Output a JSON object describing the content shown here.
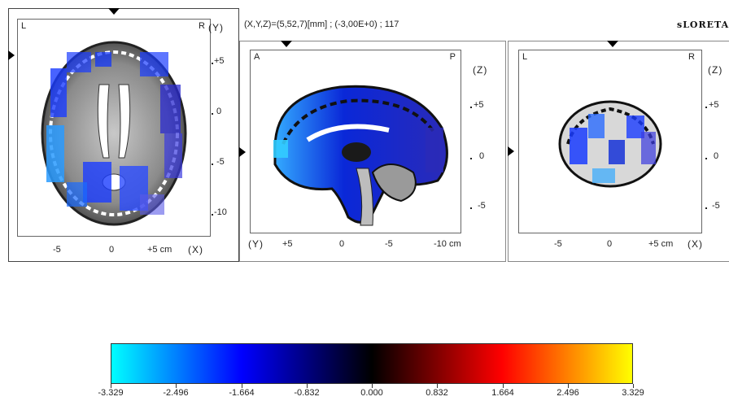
{
  "header": {
    "coord_readout": "(X,Y,Z)=(5,52,7)[mm] ; (-3,00E+0) ; 117",
    "app_title": "sLORETA"
  },
  "views": {
    "axial": {
      "left_label": "L",
      "right_label": "R",
      "vertical_axis": "(Y)",
      "vertical_ticks": [
        "+5",
        "0",
        "-5",
        "-10"
      ],
      "horizontal_ticks": [
        "-5",
        "0",
        "+5 cm"
      ],
      "horizontal_axis": "(X)"
    },
    "sagittal": {
      "left_label": "A",
      "right_label": "P",
      "vertical_axis": "(Z)",
      "vertical_ticks": [
        "+5",
        "0",
        "-5"
      ],
      "horizontal_axis": "(Y)",
      "horizontal_ticks": [
        "+5",
        "0",
        "-5",
        "-10 cm"
      ]
    },
    "coronal": {
      "left_label": "L",
      "right_label": "R",
      "vertical_axis": "(Z)",
      "vertical_ticks": [
        "+5",
        "0",
        "-5"
      ],
      "horizontal_ticks": [
        "-5",
        "0",
        "+5 cm"
      ],
      "horizontal_axis": "(X)"
    }
  },
  "colorbar": {
    "labels": [
      "-3.329",
      "-2.496",
      "-1.664",
      "-0.832",
      "0.000",
      "0.832",
      "1.664",
      "2.496",
      "3.329"
    ],
    "min": -3.329,
    "max": 3.329,
    "stops": [
      "#00ffff",
      "#0000ff",
      "#000000",
      "#ff0000",
      "#ffff00"
    ]
  },
  "colors": {
    "activation_strong": "#0033ff",
    "activation_light": "#33aaff",
    "activation_mid": "#2a2ad0"
  }
}
